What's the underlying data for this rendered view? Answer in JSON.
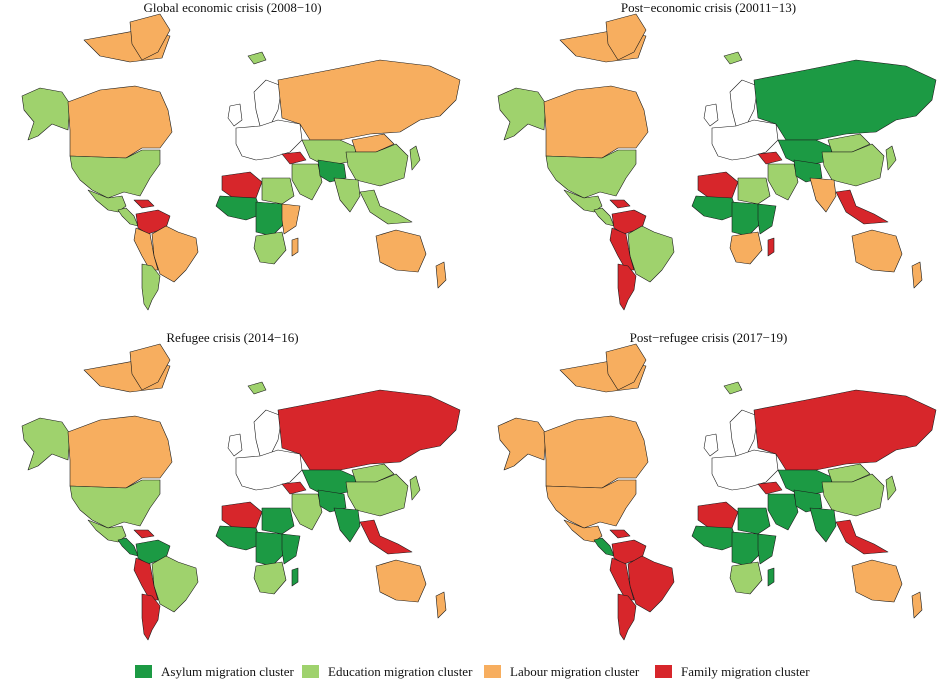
{
  "colors": {
    "asylum": "#1c9a44",
    "education": "#9fd26d",
    "labour": "#f7ae5f",
    "family": "#d7262b",
    "none": "#ffffff",
    "border": "#1a1a1a"
  },
  "panels": [
    {
      "title": "Global economic crisis (2008−10)",
      "regions": {
        "canada": "labour",
        "alaska": "education",
        "greenland": "labour",
        "arctic_islands": "labour",
        "usa": "education",
        "mexico": "education",
        "central_america": "education",
        "caribbean": "family",
        "colombia_venezuela": "family",
        "brazil": "labour",
        "peru_bolivia": "labour",
        "southern_cone": "education",
        "iceland": "education",
        "scandinavia": "none",
        "europe": "none",
        "uk": "none",
        "russia": "labour",
        "kazakhstan_central_asia": "education",
        "turkey": "family",
        "middle_east": "education",
        "iran_afghanistan": "asylum",
        "south_asia": "education",
        "china": "education",
        "mongolia": "labour",
        "southeast_asia": "education",
        "japan": "education",
        "australia": "labour",
        "new_zealand": "labour",
        "north_africa_west": "family",
        "north_africa_east": "education",
        "west_africa": "asylum",
        "central_africa": "asylum",
        "east_africa": "labour",
        "southern_africa": "education",
        "madagascar": "labour"
      }
    },
    {
      "title": "Post−economic crisis (20011−13)",
      "regions": {
        "canada": "labour",
        "alaska": "education",
        "greenland": "labour",
        "arctic_islands": "labour",
        "usa": "education",
        "mexico": "education",
        "central_america": "education",
        "caribbean": "family",
        "colombia_venezuela": "family",
        "brazil": "education",
        "peru_bolivia": "family",
        "southern_cone": "family",
        "iceland": "education",
        "scandinavia": "none",
        "europe": "none",
        "uk": "none",
        "russia": "asylum",
        "kazakhstan_central_asia": "asylum",
        "turkey": "family",
        "middle_east": "education",
        "iran_afghanistan": "asylum",
        "south_asia": "labour",
        "china": "education",
        "mongolia": "education",
        "southeast_asia": "family",
        "japan": "education",
        "australia": "labour",
        "new_zealand": "labour",
        "north_africa_west": "family",
        "north_africa_east": "education",
        "west_africa": "asylum",
        "central_africa": "asylum",
        "east_africa": "asylum",
        "southern_africa": "labour",
        "madagascar": "family"
      }
    },
    {
      "title": "Refugee crisis (2014−16)",
      "regions": {
        "canada": "labour",
        "alaska": "education",
        "greenland": "labour",
        "arctic_islands": "labour",
        "usa": "education",
        "mexico": "education",
        "central_america": "asylum",
        "caribbean": "family",
        "colombia_venezuela": "asylum",
        "brazil": "education",
        "peru_bolivia": "family",
        "southern_cone": "family",
        "iceland": "education",
        "scandinavia": "none",
        "europe": "none",
        "uk": "none",
        "russia": "family",
        "kazakhstan_central_asia": "asylum",
        "turkey": "family",
        "middle_east": "education",
        "iran_afghanistan": "asylum",
        "south_asia": "asylum",
        "china": "education",
        "mongolia": "education",
        "southeast_asia": "family",
        "japan": "education",
        "australia": "labour",
        "new_zealand": "labour",
        "north_africa_west": "family",
        "north_africa_east": "asylum",
        "west_africa": "asylum",
        "central_africa": "asylum",
        "east_africa": "asylum",
        "southern_africa": "education",
        "madagascar": "asylum"
      }
    },
    {
      "title": "Post−refugee crisis (2017−19)",
      "regions": {
        "canada": "labour",
        "alaska": "labour",
        "greenland": "labour",
        "arctic_islands": "labour",
        "usa": "labour",
        "mexico": "labour",
        "central_america": "asylum",
        "caribbean": "family",
        "colombia_venezuela": "family",
        "brazil": "family",
        "peru_bolivia": "family",
        "southern_cone": "family",
        "iceland": "education",
        "scandinavia": "none",
        "europe": "none",
        "uk": "none",
        "russia": "family",
        "kazakhstan_central_asia": "asylum",
        "turkey": "family",
        "middle_east": "asylum",
        "iran_afghanistan": "asylum",
        "south_asia": "asylum",
        "china": "education",
        "mongolia": "education",
        "southeast_asia": "family",
        "japan": "education",
        "australia": "labour",
        "new_zealand": "labour",
        "north_africa_west": "family",
        "north_africa_east": "asylum",
        "west_africa": "asylum",
        "central_africa": "asylum",
        "east_africa": "asylum",
        "southern_africa": "education",
        "madagascar": "asylum"
      }
    }
  ],
  "legend": [
    {
      "key": "asylum",
      "label": "Asylum migration cluster"
    },
    {
      "key": "education",
      "label": "Education migration cluster"
    },
    {
      "key": "labour",
      "label": "Labour migration cluster"
    },
    {
      "key": "family",
      "label": "Family migration cluster"
    }
  ]
}
